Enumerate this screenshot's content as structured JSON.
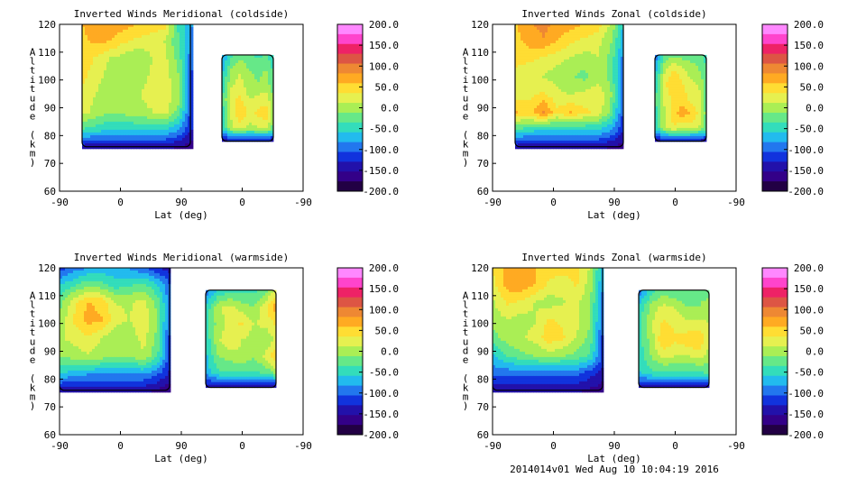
{
  "colorbar": {
    "ticks": [
      "200.0",
      "150.0",
      "100.0",
      "50.0",
      "0.0",
      "-50.0",
      "-100.0",
      "-150.0",
      "-200.0"
    ],
    "range": [
      -200,
      200
    ],
    "colors": [
      "#ff88ff",
      "#ff44cc",
      "#ee2266",
      "#dd5544",
      "#ee8833",
      "#ffaa22",
      "#ffdd33",
      "#e6f050",
      "#aaee55",
      "#66e888",
      "#33ddbb",
      "#22bbee",
      "#2277ee",
      "#1133dd",
      "#2211aa",
      "#330088",
      "#220044"
    ]
  },
  "footer": "2014014v01 Wed Aug 10 10:04:19 2016",
  "chart_data": [
    {
      "type": "heatmap",
      "title": "Inverted Winds Meridional (coldside)",
      "xlabel": "Lat (deg)",
      "ylabel": "Altitude (km)",
      "xticks": [
        "-90",
        "0",
        "90",
        "0",
        "-90"
      ],
      "yticks": [
        "60",
        "70",
        "80",
        "90",
        "100",
        "110",
        "120"
      ],
      "ylim": [
        60,
        120
      ],
      "blocks": [
        {
          "lat_range": [
            -65,
            55
          ],
          "alt_range": [
            76,
            121
          ],
          "field": [
            [
              60,
              75,
              80,
              70,
              60,
              55,
              50,
              -40,
              -80
            ],
            [
              55,
              65,
              60,
              40,
              30,
              20,
              10,
              -30,
              -90
            ],
            [
              50,
              30,
              10,
              0,
              -10,
              10,
              20,
              -20,
              -100
            ],
            [
              40,
              20,
              0,
              -10,
              0,
              15,
              25,
              -10,
              -110
            ],
            [
              30,
              10,
              -5,
              0,
              10,
              20,
              30,
              0,
              -120
            ],
            [
              20,
              0,
              -10,
              -5,
              5,
              10,
              20,
              -20,
              -120
            ],
            [
              -40,
              -50,
              -60,
              -60,
              -60,
              -60,
              -60,
              -80,
              -130
            ],
            [
              -150,
              -150,
              -150,
              -150,
              -150,
              -150,
              -150,
              -160,
              -170
            ]
          ]
        },
        {
          "lat_range": [
            90,
            147
          ],
          "alt_range": [
            78,
            109
          ],
          "field": [
            [
              -80,
              -40,
              -20,
              -30,
              -40,
              -30,
              -60
            ],
            [
              -60,
              0,
              10,
              -10,
              -20,
              -10,
              -40
            ],
            [
              -40,
              10,
              20,
              0,
              -10,
              0,
              -30
            ],
            [
              -30,
              30,
              40,
              10,
              20,
              30,
              -20
            ],
            [
              -40,
              20,
              60,
              30,
              40,
              50,
              -20
            ],
            [
              -50,
              10,
              20,
              0,
              10,
              20,
              -30
            ],
            [
              -150,
              -150,
              -150,
              -150,
              -150,
              -150,
              -160
            ]
          ]
        }
      ]
    },
    {
      "type": "heatmap",
      "title": "Inverted Winds Zonal (coldside)",
      "xlabel": "Lat (deg)",
      "ylabel": "Altitude (km)",
      "xticks": [
        "-90",
        "0",
        "90",
        "0",
        "-90"
      ],
      "yticks": [
        "60",
        "70",
        "80",
        "90",
        "100",
        "110",
        "120"
      ],
      "ylim": [
        60,
        120
      ],
      "blocks": [
        {
          "lat_range": [
            -65,
            55
          ],
          "alt_range": [
            76,
            121
          ],
          "field": [
            [
              60,
              80,
              90,
              80,
              70,
              60,
              50,
              10,
              -70
            ],
            [
              50,
              70,
              80,
              60,
              40,
              30,
              20,
              -10,
              -80
            ],
            [
              40,
              40,
              30,
              20,
              10,
              0,
              10,
              -20,
              -100
            ],
            [
              30,
              20,
              10,
              0,
              -10,
              -20,
              0,
              -20,
              -110
            ],
            [
              20,
              30,
              40,
              20,
              10,
              20,
              30,
              -10,
              -120
            ],
            [
              60,
              50,
              90,
              40,
              60,
              40,
              30,
              -20,
              -120
            ],
            [
              -40,
              -50,
              -60,
              -60,
              -60,
              -60,
              -60,
              -80,
              -130
            ],
            [
              -150,
              -150,
              -150,
              -150,
              -150,
              -150,
              -150,
              -160,
              -170
            ]
          ]
        },
        {
          "lat_range": [
            90,
            147
          ],
          "alt_range": [
            78,
            109
          ],
          "field": [
            [
              -90,
              -30,
              -10,
              -20,
              -20,
              -20,
              -50
            ],
            [
              -60,
              10,
              40,
              20,
              0,
              -10,
              -40
            ],
            [
              -40,
              30,
              60,
              40,
              20,
              10,
              -30
            ],
            [
              -30,
              20,
              40,
              50,
              30,
              20,
              -30
            ],
            [
              -40,
              10,
              50,
              70,
              60,
              30,
              -30
            ],
            [
              -50,
              10,
              30,
              20,
              20,
              10,
              -30
            ],
            [
              -150,
              -150,
              -150,
              -150,
              -150,
              -150,
              -160
            ]
          ]
        }
      ]
    },
    {
      "type": "heatmap",
      "title": "Inverted Winds Meridional (warmside)",
      "xlabel": "Lat (deg)",
      "ylabel": "Altitude (km)",
      "xticks": [
        "-90",
        "0",
        "90",
        "0",
        "-90"
      ],
      "yticks": [
        "60",
        "70",
        "80",
        "90",
        "100",
        "110",
        "120"
      ],
      "ylim": [
        60,
        120
      ],
      "blocks": [
        {
          "lat_range": [
            -90,
            32
          ],
          "alt_range": [
            76,
            121
          ],
          "field": [
            [
              -120,
              -100,
              -90,
              -80,
              -80,
              -90,
              -110,
              -130,
              -150
            ],
            [
              -60,
              -40,
              -20,
              -30,
              -50,
              -40,
              -30,
              -60,
              -110
            ],
            [
              -20,
              30,
              60,
              50,
              10,
              10,
              20,
              -20,
              -100
            ],
            [
              0,
              40,
              70,
              60,
              20,
              10,
              30,
              -10,
              -110
            ],
            [
              10,
              20,
              30,
              10,
              -10,
              0,
              20,
              -20,
              -120
            ],
            [
              -10,
              0,
              10,
              0,
              -10,
              -10,
              10,
              -30,
              -120
            ],
            [
              -60,
              -70,
              -80,
              -80,
              -80,
              -80,
              -80,
              -100,
              -140
            ],
            [
              -150,
              -150,
              -150,
              -150,
              -150,
              -150,
              -150,
              -160,
              -170
            ]
          ]
        },
        {
          "lat_range": [
            72,
            150
          ],
          "alt_range": [
            77,
            112
          ],
          "field": [
            [
              -90,
              -50,
              -40,
              -40,
              -40,
              -20,
              30
            ],
            [
              -50,
              10,
              20,
              0,
              -10,
              30,
              80
            ],
            [
              -40,
              0,
              20,
              40,
              10,
              20,
              40
            ],
            [
              -50,
              10,
              30,
              10,
              0,
              -10,
              20
            ],
            [
              -60,
              -10,
              0,
              10,
              -10,
              20,
              60
            ],
            [
              -70,
              -40,
              -40,
              -40,
              -40,
              -30,
              0
            ],
            [
              -150,
              -150,
              -150,
              -150,
              -150,
              -150,
              -160
            ]
          ]
        }
      ]
    },
    {
      "type": "heatmap",
      "title": "Inverted Winds Zonal (warmside)",
      "xlabel": "Lat (deg)",
      "ylabel": "Altitude (km)",
      "xticks": [
        "-90",
        "0",
        "90",
        "0",
        "-90"
      ],
      "yticks": [
        "60",
        "70",
        "80",
        "90",
        "100",
        "110",
        "120"
      ],
      "ylim": [
        60,
        120
      ],
      "blocks": [
        {
          "lat_range": [
            -90,
            32
          ],
          "alt_range": [
            76,
            121
          ],
          "field": [
            [
              40,
              70,
              80,
              60,
              50,
              50,
              40,
              10,
              -80
            ],
            [
              30,
              70,
              80,
              60,
              30,
              20,
              40,
              0,
              -90
            ],
            [
              10,
              40,
              30,
              10,
              0,
              10,
              20,
              -10,
              -100
            ],
            [
              0,
              10,
              0,
              10,
              40,
              30,
              20,
              -10,
              -110
            ],
            [
              -20,
              0,
              10,
              20,
              50,
              40,
              10,
              -20,
              -120
            ],
            [
              -60,
              -30,
              -20,
              -10,
              0,
              -10,
              -20,
              -40,
              -120
            ],
            [
              -100,
              -100,
              -100,
              -100,
              -100,
              -100,
              -100,
              -120,
              -140
            ],
            [
              -150,
              -150,
              -150,
              -150,
              -150,
              -150,
              -150,
              -160,
              -170
            ]
          ]
        },
        {
          "lat_range": [
            72,
            150
          ],
          "alt_range": [
            77,
            112
          ],
          "field": [
            [
              -90,
              -40,
              -20,
              -30,
              -30,
              -30,
              -20
            ],
            [
              -50,
              0,
              20,
              10,
              -10,
              -10,
              10
            ],
            [
              -40,
              10,
              40,
              30,
              20,
              20,
              10
            ],
            [
              -40,
              0,
              60,
              40,
              50,
              60,
              10
            ],
            [
              -50,
              -10,
              20,
              10,
              10,
              20,
              0
            ],
            [
              -60,
              -40,
              -40,
              -40,
              -40,
              -40,
              -30
            ],
            [
              -150,
              -150,
              -150,
              -150,
              -150,
              -150,
              -160
            ]
          ]
        }
      ]
    }
  ]
}
